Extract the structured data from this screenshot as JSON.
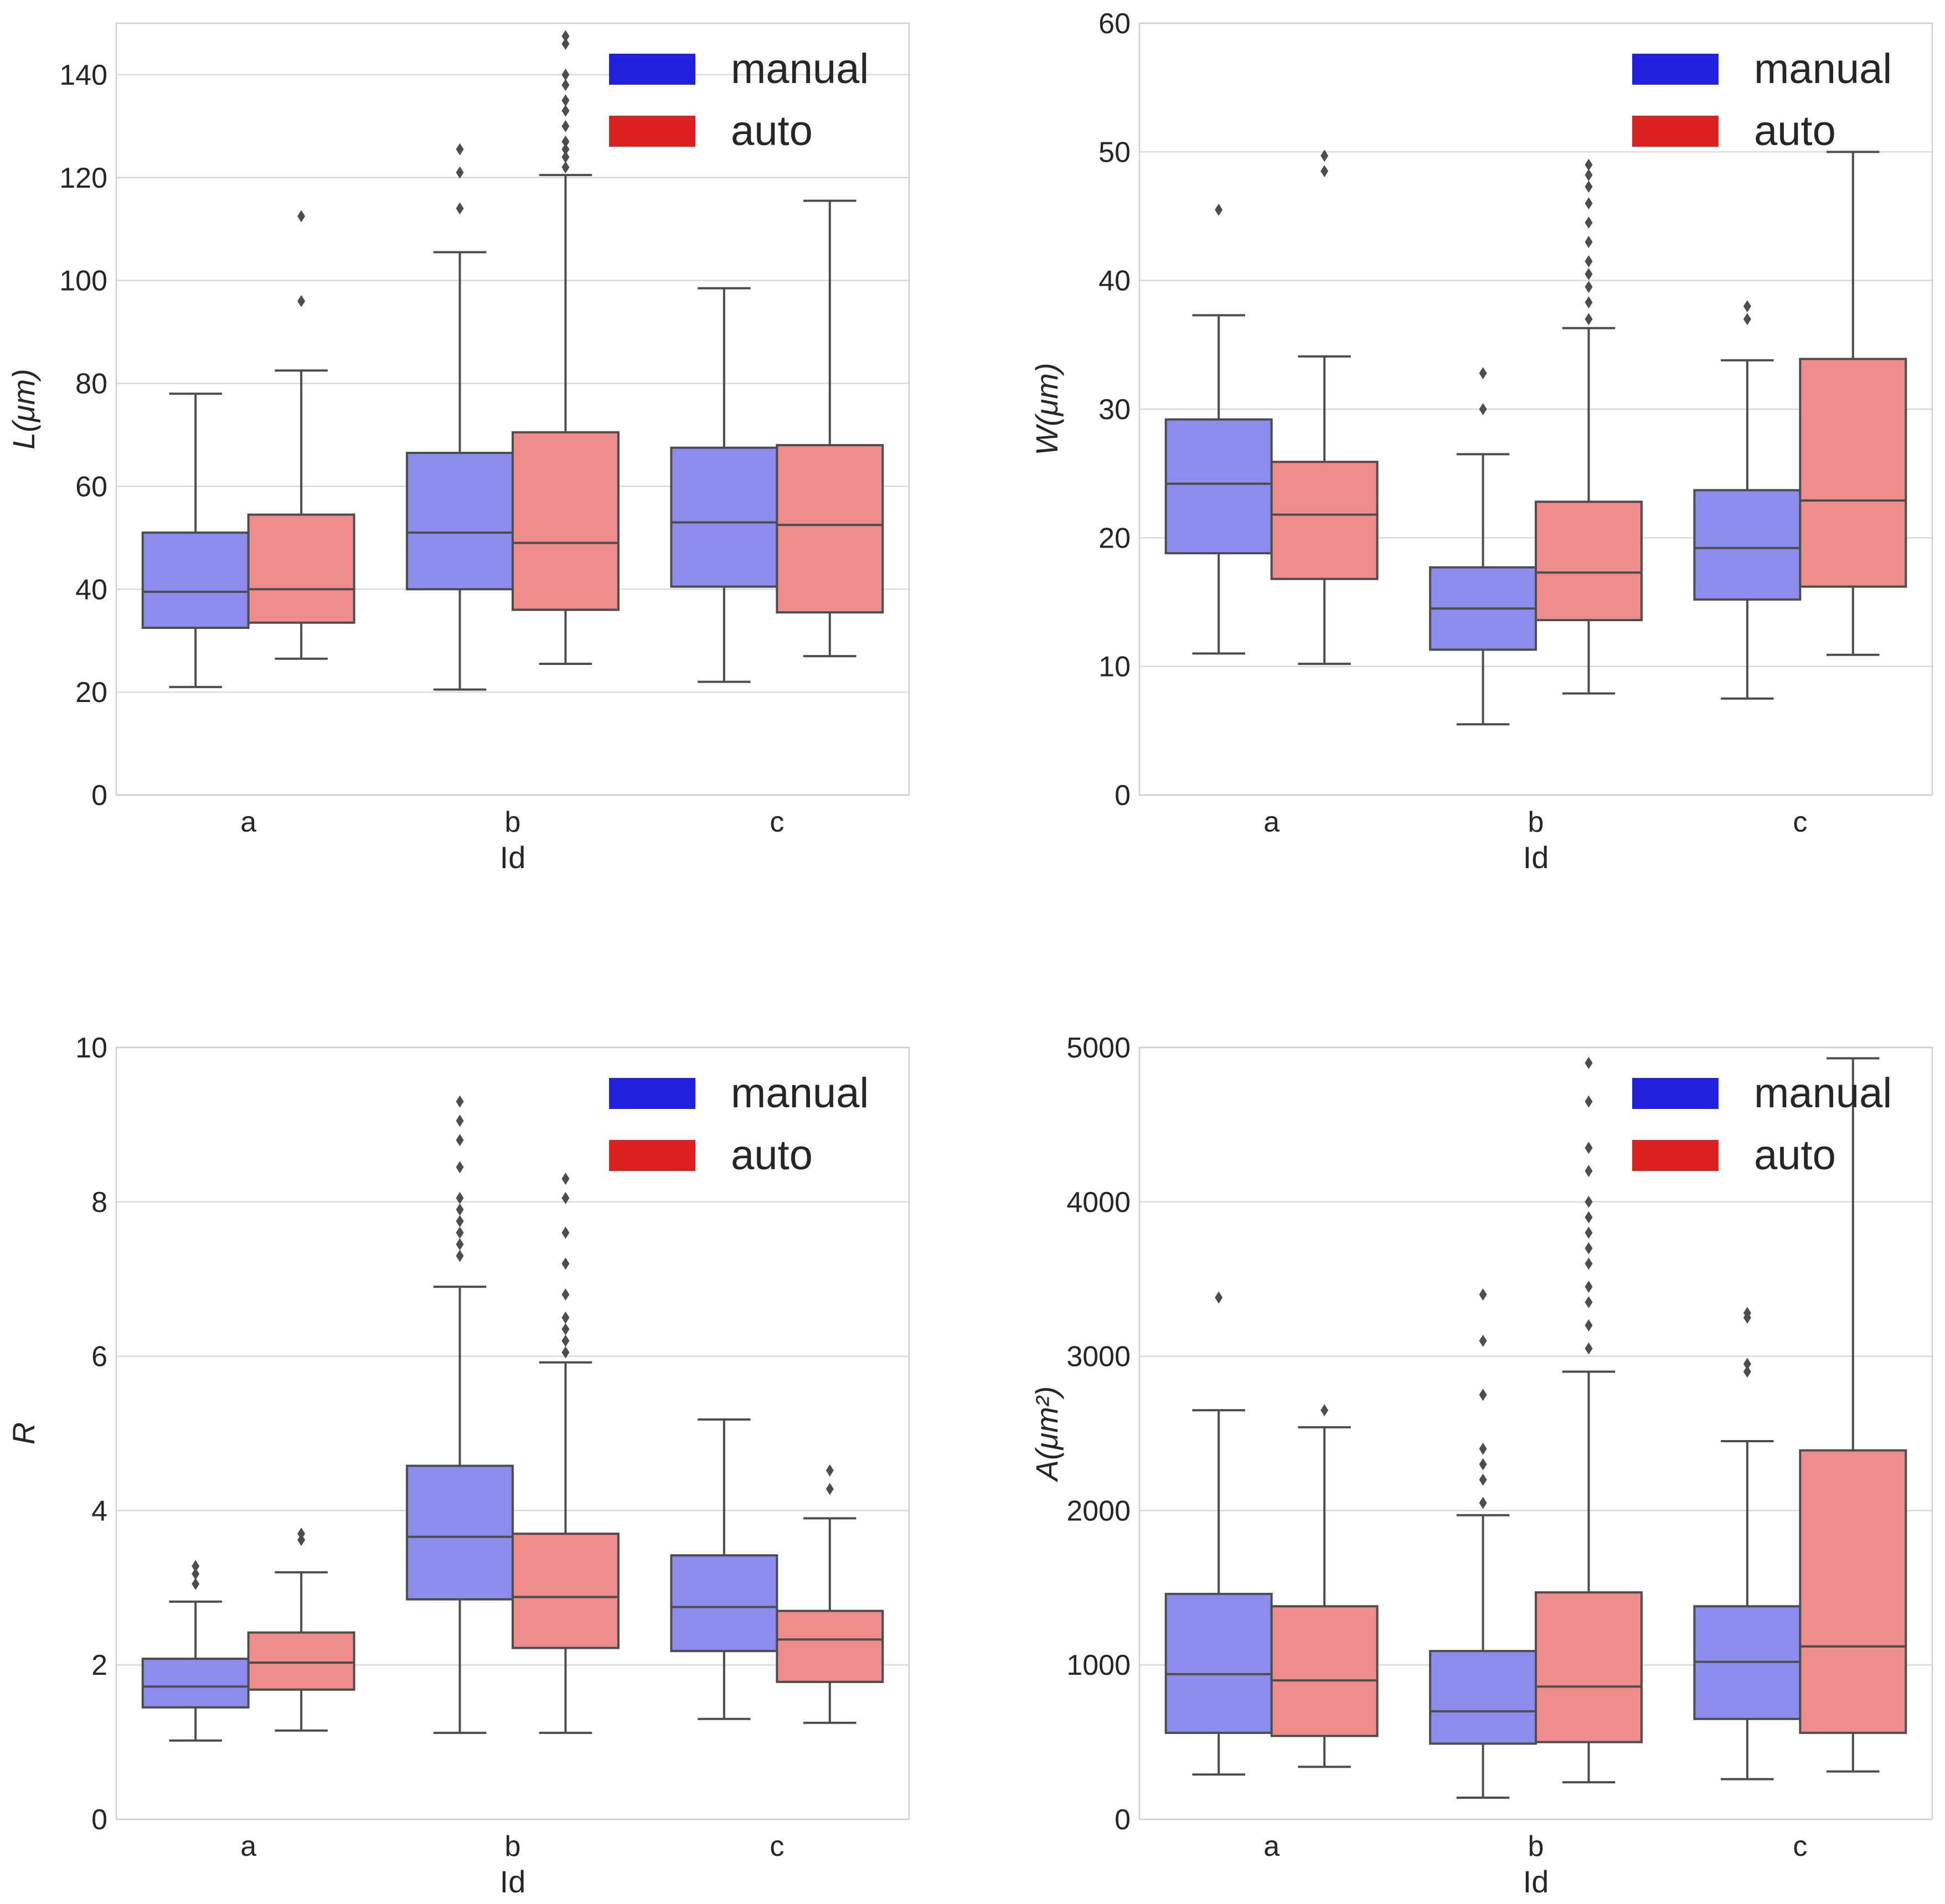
{
  "colors": {
    "manual_box": "#8c8cee",
    "auto_box": "#ee8c8c",
    "manual_legend": "#2121dd",
    "auto_legend": "#dd2121",
    "line": "#4d4d4d",
    "grid": "#d9d9d9",
    "frame": "#cfcfcf"
  },
  "chart_data": [
    {
      "type": "box",
      "categories": [
        "a",
        "b",
        "c"
      ],
      "xlabel": "Id",
      "ylabel": "L(μm)",
      "ylim": [
        0,
        150
      ],
      "yticks": [
        0,
        20,
        40,
        60,
        80,
        100,
        120,
        140
      ],
      "grid": true,
      "legend": {
        "position": "top-right",
        "entries": [
          "manual",
          "auto"
        ]
      },
      "series": [
        {
          "name": "manual",
          "boxes": [
            {
              "whislo": 21,
              "q1": 32.5,
              "med": 39.5,
              "q3": 51,
              "whishi": 78,
              "fliers": []
            },
            {
              "whislo": 20.5,
              "q1": 40,
              "med": 51,
              "q3": 66.5,
              "whishi": 105.5,
              "fliers": [
                114,
                121,
                125.5
              ]
            },
            {
              "whislo": 22,
              "q1": 40.5,
              "med": 53,
              "q3": 67.5,
              "whishi": 98.5,
              "fliers": []
            }
          ]
        },
        {
          "name": "auto",
          "boxes": [
            {
              "whislo": 26.5,
              "q1": 33.5,
              "med": 40,
              "q3": 54.5,
              "whishi": 82.5,
              "fliers": [
                96,
                112.5
              ]
            },
            {
              "whislo": 25.5,
              "q1": 36,
              "med": 49,
              "q3": 70.5,
              "whishi": 120.5,
              "fliers": [
                122,
                124,
                125.5,
                127,
                130,
                133,
                135,
                138,
                140,
                146,
                147.5
              ]
            },
            {
              "whislo": 27,
              "q1": 35.5,
              "med": 52.5,
              "q3": 68,
              "whishi": 115.5,
              "fliers": []
            }
          ]
        }
      ]
    },
    {
      "type": "box",
      "categories": [
        "a",
        "b",
        "c"
      ],
      "xlabel": "Id",
      "ylabel": "W(μm)",
      "ylim": [
        0,
        60
      ],
      "yticks": [
        0,
        10,
        20,
        30,
        40,
        50,
        60
      ],
      "grid": true,
      "legend": {
        "position": "top-right",
        "entries": [
          "manual",
          "auto"
        ]
      },
      "series": [
        {
          "name": "manual",
          "boxes": [
            {
              "whislo": 11,
              "q1": 18.8,
              "med": 24.2,
              "q3": 29.2,
              "whishi": 37.3,
              "fliers": [
                45.5
              ]
            },
            {
              "whislo": 5.5,
              "q1": 11.3,
              "med": 14.5,
              "q3": 17.7,
              "whishi": 26.5,
              "fliers": [
                30,
                32.8
              ]
            },
            {
              "whislo": 7.5,
              "q1": 15.2,
              "med": 19.2,
              "q3": 23.7,
              "whishi": 33.8,
              "fliers": [
                37,
                38
              ]
            }
          ]
        },
        {
          "name": "auto",
          "boxes": [
            {
              "whislo": 10.2,
              "q1": 16.8,
              "med": 21.8,
              "q3": 25.9,
              "whishi": 34.1,
              "fliers": [
                48.5,
                49.7
              ]
            },
            {
              "whislo": 7.9,
              "q1": 13.6,
              "med": 17.3,
              "q3": 22.8,
              "whishi": 36.3,
              "fliers": [
                37,
                38.3,
                39.5,
                40.5,
                41.5,
                43,
                44.5,
                46,
                47.3,
                48.2,
                49
              ]
            },
            {
              "whislo": 10.9,
              "q1": 16.2,
              "med": 22.9,
              "q3": 33.9,
              "whishi": 50,
              "fliers": []
            }
          ]
        }
      ]
    },
    {
      "type": "box",
      "categories": [
        "a",
        "b",
        "c"
      ],
      "xlabel": "Id",
      "ylabel": "R",
      "ylim": [
        0,
        10
      ],
      "yticks": [
        0,
        2,
        4,
        6,
        8,
        10
      ],
      "grid": true,
      "legend": {
        "position": "top-right",
        "entries": [
          "manual",
          "auto"
        ]
      },
      "series": [
        {
          "name": "manual",
          "boxes": [
            {
              "whislo": 1.02,
              "q1": 1.45,
              "med": 1.72,
              "q3": 2.08,
              "whishi": 2.82,
              "fliers": [
                3.05,
                3.18,
                3.28
              ]
            },
            {
              "whislo": 1.12,
              "q1": 2.85,
              "med": 3.66,
              "q3": 4.58,
              "whishi": 6.9,
              "fliers": [
                7.3,
                7.45,
                7.6,
                7.75,
                7.9,
                8.05,
                8.45,
                8.8,
                9.05,
                9.3
              ]
            },
            {
              "whislo": 1.3,
              "q1": 2.18,
              "med": 2.75,
              "q3": 3.42,
              "whishi": 5.18,
              "fliers": []
            }
          ]
        },
        {
          "name": "auto",
          "boxes": [
            {
              "whislo": 1.15,
              "q1": 1.68,
              "med": 2.03,
              "q3": 2.42,
              "whishi": 3.2,
              "fliers": [
                3.62,
                3.7
              ]
            },
            {
              "whislo": 1.12,
              "q1": 2.22,
              "med": 2.88,
              "q3": 3.7,
              "whishi": 5.92,
              "fliers": [
                6.05,
                6.2,
                6.35,
                6.5,
                6.8,
                7.2,
                7.6,
                8.05,
                8.3
              ]
            },
            {
              "whislo": 1.25,
              "q1": 1.78,
              "med": 2.33,
              "q3": 2.7,
              "whishi": 3.9,
              "fliers": [
                4.28,
                4.52
              ]
            }
          ]
        }
      ]
    },
    {
      "type": "box",
      "categories": [
        "a",
        "b",
        "c"
      ],
      "xlabel": "Id",
      "ylabel": "A(μm²)",
      "ylim": [
        0,
        5000
      ],
      "yticks": [
        0,
        1000,
        2000,
        3000,
        4000,
        5000
      ],
      "grid": true,
      "legend": {
        "position": "top-right",
        "entries": [
          "manual",
          "auto"
        ]
      },
      "series": [
        {
          "name": "manual",
          "boxes": [
            {
              "whislo": 290,
              "q1": 560,
              "med": 940,
              "q3": 1460,
              "whishi": 2650,
              "fliers": [
                3380
              ]
            },
            {
              "whislo": 140,
              "q1": 490,
              "med": 700,
              "q3": 1090,
              "whishi": 1970,
              "fliers": [
                2050,
                2200,
                2300,
                2400,
                2750,
                3100,
                3400
              ]
            },
            {
              "whislo": 260,
              "q1": 650,
              "med": 1020,
              "q3": 1380,
              "whishi": 2450,
              "fliers": [
                2900,
                2950,
                3250,
                3280
              ]
            }
          ]
        },
        {
          "name": "auto",
          "boxes": [
            {
              "whislo": 340,
              "q1": 540,
              "med": 900,
              "q3": 1380,
              "whishi": 2540,
              "fliers": [
                2650
              ]
            },
            {
              "whislo": 240,
              "q1": 500,
              "med": 860,
              "q3": 1470,
              "whishi": 2900,
              "fliers": [
                3050,
                3200,
                3350,
                3450,
                3600,
                3700,
                3800,
                3900,
                4000,
                4200,
                4350,
                4650,
                4900
              ]
            },
            {
              "whislo": 310,
              "q1": 560,
              "med": 1120,
              "q3": 2390,
              "whishi": 4930,
              "fliers": []
            }
          ]
        }
      ]
    }
  ]
}
